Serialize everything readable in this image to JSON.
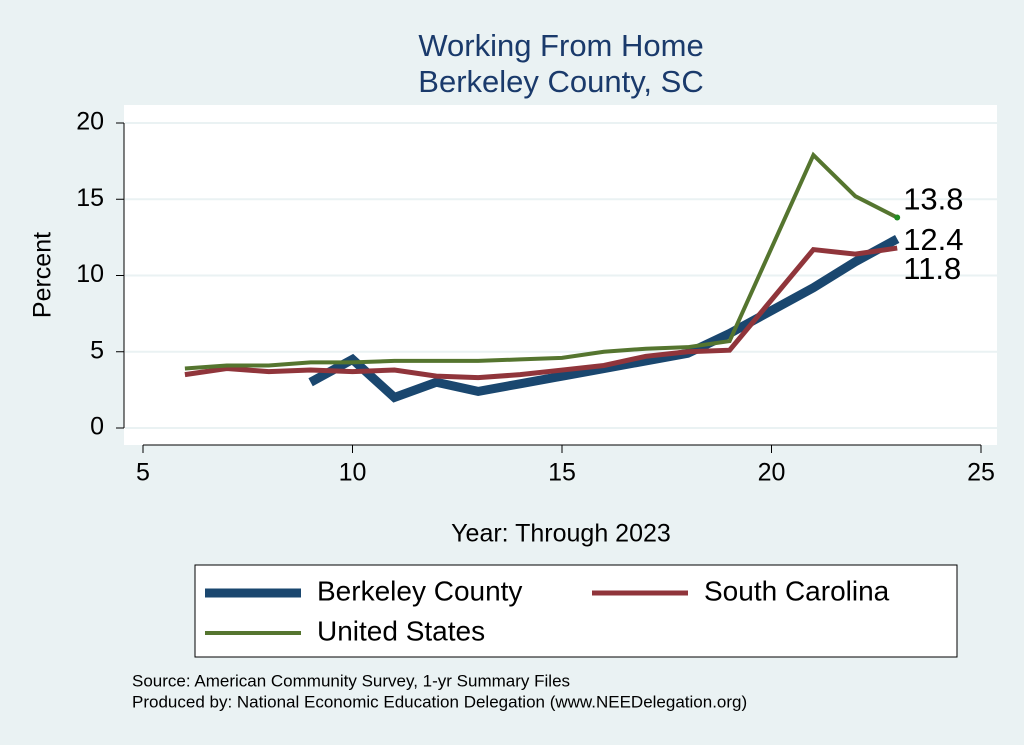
{
  "chart_data": {
    "type": "line",
    "title": "Working From Home",
    "subtitle": "Berkeley County, SC",
    "x_label": "Year: Through 2023",
    "y_label": "Percent",
    "xlim": [
      5,
      25
    ],
    "xticks": [
      5,
      10,
      15,
      20,
      25
    ],
    "ylim": [
      0,
      20
    ],
    "yticks": [
      0,
      5,
      10,
      15,
      20
    ],
    "grid": true,
    "series": [
      {
        "name": "Berkeley County",
        "color": "#1a476f",
        "x": [
          9,
          10,
          11,
          12,
          13,
          14,
          15,
          16,
          17,
          18,
          19,
          21,
          22,
          23
        ],
        "values": [
          3.0,
          4.5,
          2.0,
          3.0,
          2.4,
          2.9,
          3.4,
          3.9,
          4.4,
          4.9,
          6.2,
          9.2,
          10.9,
          12.4
        ]
      },
      {
        "name": "South Carolina",
        "color": "#90353b",
        "x": [
          6,
          7,
          8,
          9,
          10,
          11,
          12,
          13,
          14,
          15,
          16,
          17,
          18,
          19,
          21,
          22,
          23
        ],
        "values": [
          3.5,
          3.9,
          3.7,
          3.8,
          3.7,
          3.8,
          3.4,
          3.3,
          3.5,
          3.8,
          4.1,
          4.7,
          5.0,
          5.1,
          11.7,
          11.4,
          11.8
        ]
      },
      {
        "name": "United States",
        "color": "#55752f",
        "x": [
          6,
          7,
          8,
          9,
          10,
          11,
          12,
          13,
          14,
          15,
          16,
          17,
          18,
          19,
          21,
          22,
          23
        ],
        "values": [
          3.9,
          4.1,
          4.1,
          4.3,
          4.3,
          4.4,
          4.4,
          4.4,
          4.5,
          4.6,
          5.0,
          5.2,
          5.3,
          5.7,
          17.9,
          15.2,
          13.8
        ]
      }
    ],
    "notes": [
      "Source: American Community Survey, 1-yr Summary Files",
      "Produced by: National Economic Education Delegation (www.NEEDelegation.org)"
    ]
  }
}
